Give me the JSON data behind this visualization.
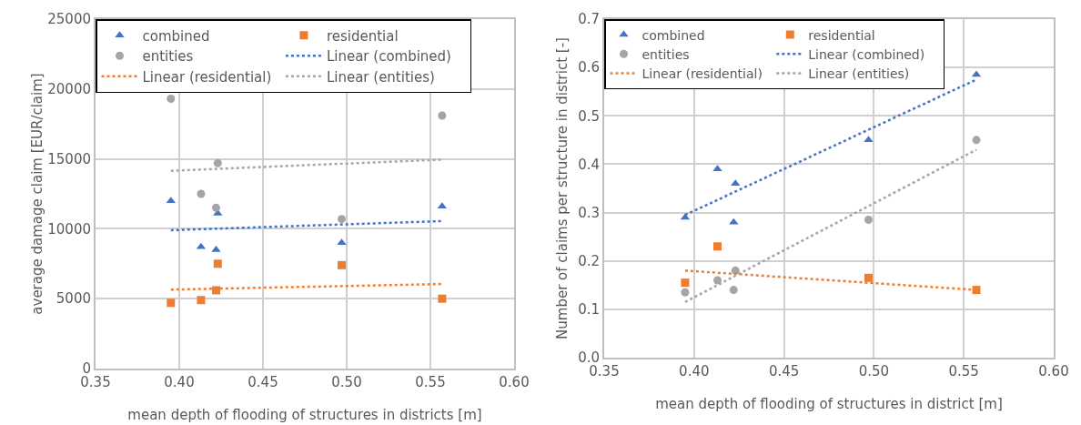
{
  "chart_data": [
    {
      "type": "scatter",
      "xlabel": "mean depth of flooding of structures in districts [m]",
      "ylabel": "average damage claim [EUR/claim]",
      "xlim": [
        0.35,
        0.6
      ],
      "xticks": [
        {
          "value": 0.35,
          "label": "0.35"
        },
        {
          "value": 0.4,
          "label": "0.40"
        },
        {
          "value": 0.45,
          "label": "0.45"
        },
        {
          "value": 0.5,
          "label": "0.50"
        },
        {
          "value": 0.55,
          "label": "0.55"
        },
        {
          "value": 0.6,
          "label": "0.60"
        }
      ],
      "ylim": [
        0,
        25000
      ],
      "yticks": [
        0,
        5000,
        10000,
        15000,
        20000,
        25000
      ],
      "grid": true,
      "legend": "top",
      "series": [
        {
          "name": "combined",
          "color": "#4472c4",
          "marker": "triangle",
          "x": [
            0.395,
            0.413,
            0.422,
            0.423,
            0.497,
            0.557
          ],
          "values": [
            12000,
            8700,
            8500,
            11100,
            9000,
            11600
          ]
        },
        {
          "name": "residential",
          "color": "#ed7d31",
          "marker": "square",
          "x": [
            0.395,
            0.413,
            0.422,
            0.423,
            0.497,
            0.557
          ],
          "values": [
            4700,
            4900,
            5600,
            7500,
            7400,
            5000
          ]
        },
        {
          "name": "entities",
          "color": "#a5a5a5",
          "marker": "circle",
          "x": [
            0.395,
            0.413,
            0.422,
            0.423,
            0.497,
            0.557
          ],
          "values": [
            19300,
            12500,
            11500,
            14700,
            10700,
            18100
          ]
        },
        {
          "name": "Linear (combined)",
          "type": "line",
          "color": "#4472c4",
          "marker": "none",
          "line_style": "dotted",
          "x": [
            0.395,
            0.557
          ],
          "values": [
            9900,
            10550
          ]
        },
        {
          "name": "Linear (residential)",
          "type": "line",
          "color": "#ed7d31",
          "marker": "none",
          "line_style": "dotted",
          "x": [
            0.395,
            0.557
          ],
          "values": [
            5650,
            6050
          ]
        },
        {
          "name": "Linear (entities)",
          "type": "line",
          "color": "#a5a5a5",
          "marker": "none",
          "line_style": "dotted",
          "x": [
            0.395,
            0.557
          ],
          "values": [
            14150,
            14950
          ]
        }
      ]
    },
    {
      "type": "scatter",
      "xlabel": "mean depth of flooding of structures in district [m]",
      "ylabel": "Number of claims per structure in district [-]",
      "xlim": [
        0.35,
        0.6
      ],
      "xticks": [
        {
          "value": 0.35,
          "label": "0.35"
        },
        {
          "value": 0.4,
          "label": "0.40"
        },
        {
          "value": 0.45,
          "label": "0.45"
        },
        {
          "value": 0.5,
          "label": "0.50"
        },
        {
          "value": 0.55,
          "label": "0.55"
        },
        {
          "value": 0.6,
          "label": "0.60"
        }
      ],
      "ylim": [
        0,
        0.7
      ],
      "yticks": [
        {
          "value": 0,
          "label": "0.0"
        },
        0.1,
        0.2,
        0.3,
        0.4,
        0.5,
        0.6,
        0.7
      ],
      "grid": true,
      "legend": "top",
      "series": [
        {
          "name": "combined",
          "color": "#4472c4",
          "marker": "triangle",
          "x": [
            0.395,
            0.413,
            0.422,
            0.423,
            0.497,
            0.557
          ],
          "values": [
            0.29,
            0.39,
            0.28,
            0.36,
            0.45,
            0.585
          ]
        },
        {
          "name": "residential",
          "color": "#ed7d31",
          "marker": "square",
          "x": [
            0.395,
            0.413,
            0.422,
            0.423,
            0.497,
            0.557
          ],
          "values": [
            0.155,
            0.23,
            null,
            null,
            0.165,
            0.14
          ]
        },
        {
          "name": "entities",
          "color": "#a5a5a5",
          "marker": "circle",
          "x": [
            0.395,
            0.413,
            0.422,
            0.423,
            0.497,
            0.557
          ],
          "values": [
            0.135,
            0.16,
            0.14,
            0.18,
            0.285,
            0.45
          ]
        },
        {
          "name": "Linear (combined)",
          "type": "line",
          "color": "#4472c4",
          "marker": "none",
          "line_style": "dotted",
          "x": [
            0.395,
            0.557
          ],
          "values": [
            0.295,
            0.575
          ]
        },
        {
          "name": "Linear (residential)",
          "type": "line",
          "color": "#ed7d31",
          "marker": "none",
          "line_style": "dotted",
          "x": [
            0.395,
            0.557
          ],
          "values": [
            0.18,
            0.14
          ]
        },
        {
          "name": "Linear (entities)",
          "type": "line",
          "color": "#a5a5a5",
          "marker": "none",
          "line_style": "dotted",
          "x": [
            0.395,
            0.557
          ],
          "values": [
            0.115,
            0.43
          ]
        }
      ]
    }
  ]
}
